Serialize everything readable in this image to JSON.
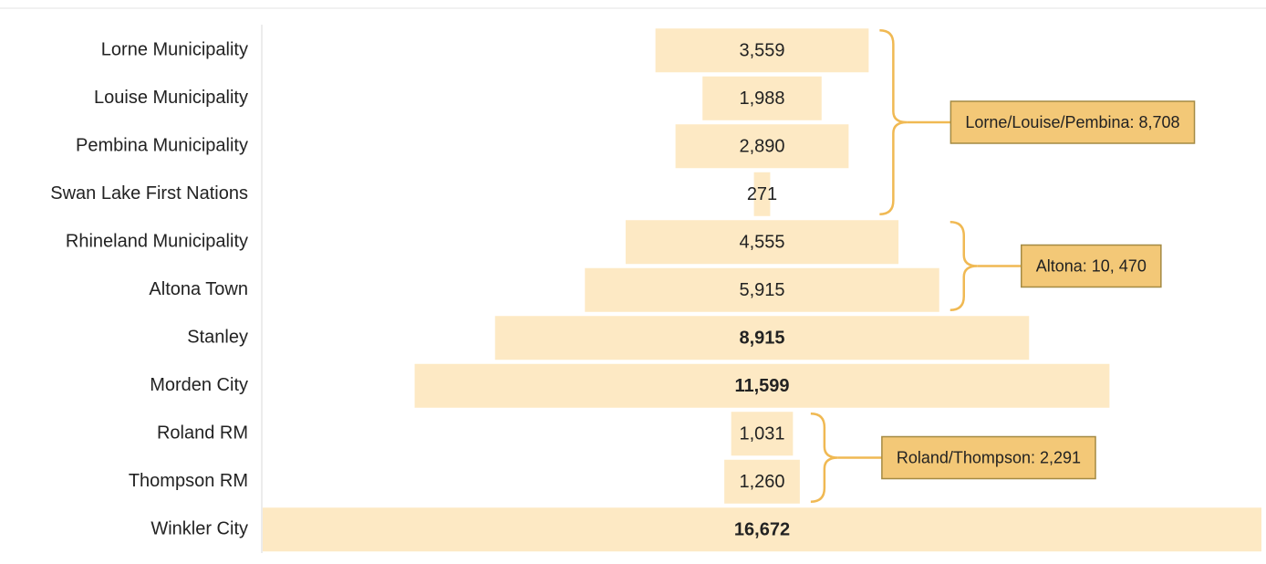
{
  "chart_data": {
    "type": "funnel",
    "categories": [
      "Lorne Municipality",
      "Louise Municipality",
      "Pembina Municipality",
      "Swan Lake First Nations",
      "Rhineland Municipality",
      "Altona Town",
      "Stanley",
      "Morden City",
      "Roland RM",
      "Thompson RM",
      "Winkler City"
    ],
    "values": [
      3559,
      1988,
      2890,
      271,
      4555,
      5915,
      8915,
      11599,
      1031,
      1260,
      16672
    ],
    "value_labels": [
      "3,559",
      "1,988",
      "2,890",
      "271",
      "4,555",
      "5,915",
      "8,915",
      "11,599",
      "1,031",
      "1,260",
      "16,672"
    ],
    "value_label_bold": [
      false,
      false,
      false,
      false,
      false,
      false,
      true,
      true,
      false,
      false,
      true
    ],
    "color": "#fde9c4",
    "annotations": [
      {
        "text": "Lorne/Louise/Pembina: 8,708",
        "rows": [
          0,
          3
        ]
      },
      {
        "text": "Altona: 10, 470",
        "rows": [
          4,
          5
        ]
      },
      {
        "text": "Roland/Thompson: 2,291",
        "rows": [
          8,
          9
        ]
      }
    ],
    "annotation_color": "#f0b953",
    "annotation_fill": "#f3c877"
  }
}
